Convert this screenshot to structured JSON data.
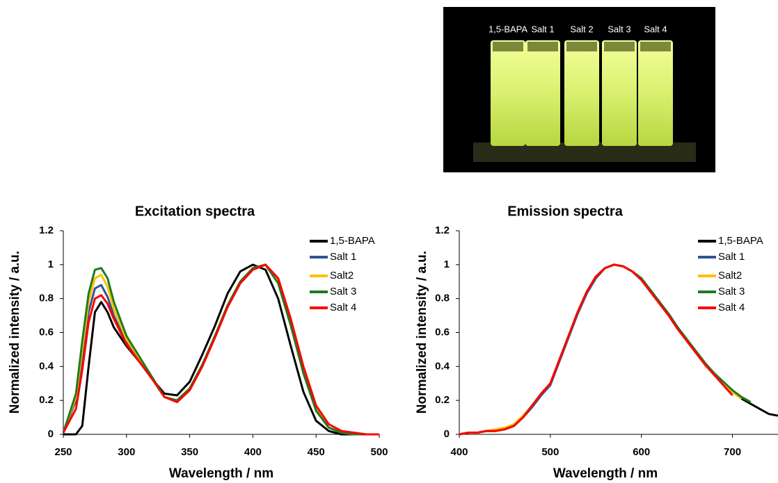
{
  "photo": {
    "labels": [
      "1,5-BAPA",
      "Salt 1",
      "Salt 2",
      "Salt 3",
      "Salt 4"
    ]
  },
  "chart_data": [
    {
      "type": "line",
      "title": "Excitation spectra",
      "x_label": "Wavelength / nm",
      "y_label": "Normalized intensity / a.u.",
      "x": [
        250,
        260,
        265,
        270,
        275,
        280,
        285,
        290,
        300,
        310,
        320,
        330,
        340,
        350,
        360,
        370,
        380,
        390,
        400,
        410,
        420,
        430,
        440,
        450,
        460,
        470,
        480,
        490,
        500
      ],
      "xlim": [
        250,
        500
      ],
      "xticks": [
        250,
        300,
        350,
        400,
        450,
        500
      ],
      "ylim": [
        0,
        1.2
      ],
      "yticks": [
        0,
        0.2,
        0.4,
        0.6,
        0.8,
        1,
        1.2
      ],
      "legend": "upper right",
      "series": [
        {
          "name": "1,5-BAPA",
          "color": "#000000",
          "values": [
            0,
            0,
            0.05,
            0.4,
            0.72,
            0.78,
            0.72,
            0.63,
            0.52,
            0.43,
            0.33,
            0.24,
            0.23,
            0.31,
            0.47,
            0.64,
            0.83,
            0.96,
            1.0,
            0.97,
            0.8,
            0.52,
            0.25,
            0.08,
            0.02,
            0,
            0,
            0,
            0
          ]
        },
        {
          "name": "Salt 1",
          "color": "#2f5597",
          "values": [
            0.01,
            0.2,
            0.45,
            0.72,
            0.86,
            0.88,
            0.81,
            0.7,
            0.54,
            0.43,
            0.33,
            0.22,
            0.2,
            0.27,
            0.41,
            0.58,
            0.76,
            0.9,
            0.98,
            1.0,
            0.9,
            0.65,
            0.36,
            0.14,
            0.04,
            0.01,
            0,
            0,
            0
          ]
        },
        {
          "name": "Salt2",
          "color": "#ffc000",
          "values": [
            0.01,
            0.22,
            0.5,
            0.78,
            0.92,
            0.94,
            0.87,
            0.74,
            0.56,
            0.45,
            0.34,
            0.22,
            0.2,
            0.27,
            0.41,
            0.58,
            0.76,
            0.9,
            0.98,
            1.0,
            0.9,
            0.65,
            0.37,
            0.15,
            0.04,
            0.01,
            0,
            0,
            0
          ]
        },
        {
          "name": "Salt 3",
          "color": "#1e7b1e",
          "values": [
            0.01,
            0.24,
            0.55,
            0.83,
            0.97,
            0.98,
            0.92,
            0.78,
            0.58,
            0.46,
            0.34,
            0.22,
            0.2,
            0.27,
            0.41,
            0.58,
            0.76,
            0.9,
            0.98,
            1.0,
            0.89,
            0.64,
            0.36,
            0.14,
            0.04,
            0.01,
            0,
            0,
            0
          ]
        },
        {
          "name": "Salt 4",
          "color": "#ff0000",
          "values": [
            0.01,
            0.15,
            0.38,
            0.66,
            0.8,
            0.82,
            0.77,
            0.68,
            0.53,
            0.43,
            0.33,
            0.22,
            0.19,
            0.26,
            0.4,
            0.57,
            0.75,
            0.89,
            0.97,
            1.0,
            0.92,
            0.68,
            0.4,
            0.17,
            0.06,
            0.02,
            0.01,
            0,
            0
          ]
        }
      ]
    },
    {
      "type": "line",
      "title": "Emission spectra",
      "x_label": "Wavelength / nm",
      "y_label": "Normalized intensity / a.u.",
      "x": [
        400,
        410,
        420,
        430,
        440,
        450,
        460,
        470,
        480,
        490,
        500,
        510,
        520,
        530,
        540,
        550,
        560,
        570,
        580,
        590,
        600,
        610,
        620,
        630,
        640,
        650,
        660,
        670,
        680,
        690,
        700,
        710,
        720,
        730,
        740,
        750
      ],
      "xlim": [
        400,
        750
      ],
      "xticks": [
        400,
        500,
        600,
        700
      ],
      "ylim": [
        0,
        1.2
      ],
      "yticks": [
        0,
        0.2,
        0.4,
        0.6,
        0.8,
        1,
        1.2
      ],
      "legend": "upper right",
      "series": [
        {
          "name": "1,5-BAPA",
          "color": "#000000",
          "values": [
            0,
            0.01,
            0.01,
            0.02,
            0.02,
            0.03,
            0.05,
            0.1,
            0.17,
            0.24,
            0.3,
            0.44,
            0.58,
            0.72,
            0.84,
            0.93,
            0.98,
            1.0,
            0.99,
            0.96,
            0.91,
            0.84,
            0.77,
            0.7,
            0.62,
            0.55,
            0.48,
            0.41,
            0.35,
            0.3,
            0.25,
            0.21,
            0.18,
            0.15,
            0.12,
            0.11
          ]
        },
        {
          "name": "Salt 1",
          "color": "#2f5597",
          "values": [
            0,
            0.01,
            0.01,
            0.02,
            0.02,
            0.03,
            0.05,
            0.1,
            0.16,
            0.23,
            0.29,
            0.43,
            0.57,
            0.71,
            0.83,
            0.92,
            0.98,
            1.0,
            0.99,
            0.96,
            0.91,
            0.84,
            0.77,
            0.7,
            0.62,
            0.55,
            0.48,
            0.41,
            0.35,
            0.3,
            0.25,
            0.22,
            0.19,
            null,
            null,
            null
          ]
        },
        {
          "name": "Salt2",
          "color": "#ffc000",
          "values": [
            0,
            0.01,
            0.01,
            0.02,
            0.03,
            0.04,
            0.06,
            0.11,
            0.17,
            0.24,
            0.3,
            0.44,
            0.58,
            0.72,
            0.84,
            0.93,
            0.98,
            1.0,
            0.99,
            0.96,
            0.91,
            0.84,
            0.77,
            0.7,
            0.62,
            0.55,
            0.48,
            0.41,
            0.35,
            0.3,
            0.25,
            0.21,
            null,
            null,
            null,
            null
          ]
        },
        {
          "name": "Salt 3",
          "color": "#1e7b1e",
          "values": [
            0,
            0.01,
            0.01,
            0.02,
            0.02,
            0.03,
            0.05,
            0.1,
            0.17,
            0.24,
            0.3,
            0.44,
            0.58,
            0.72,
            0.84,
            0.93,
            0.98,
            1.0,
            0.99,
            0.96,
            0.92,
            0.85,
            0.78,
            0.71,
            0.63,
            0.56,
            0.49,
            0.42,
            0.36,
            0.31,
            0.26,
            0.22,
            0.19,
            null,
            null,
            null
          ]
        },
        {
          "name": "Salt 4",
          "color": "#ff0000",
          "values": [
            0,
            0.01,
            0.01,
            0.02,
            0.02,
            0.03,
            0.05,
            0.1,
            0.17,
            0.24,
            0.3,
            0.44,
            0.58,
            0.72,
            0.84,
            0.93,
            0.98,
            1.0,
            0.99,
            0.96,
            0.91,
            0.84,
            0.77,
            0.7,
            0.62,
            0.55,
            0.48,
            0.41,
            0.35,
            0.29,
            0.23,
            null,
            null,
            null,
            null,
            null
          ]
        }
      ]
    }
  ]
}
